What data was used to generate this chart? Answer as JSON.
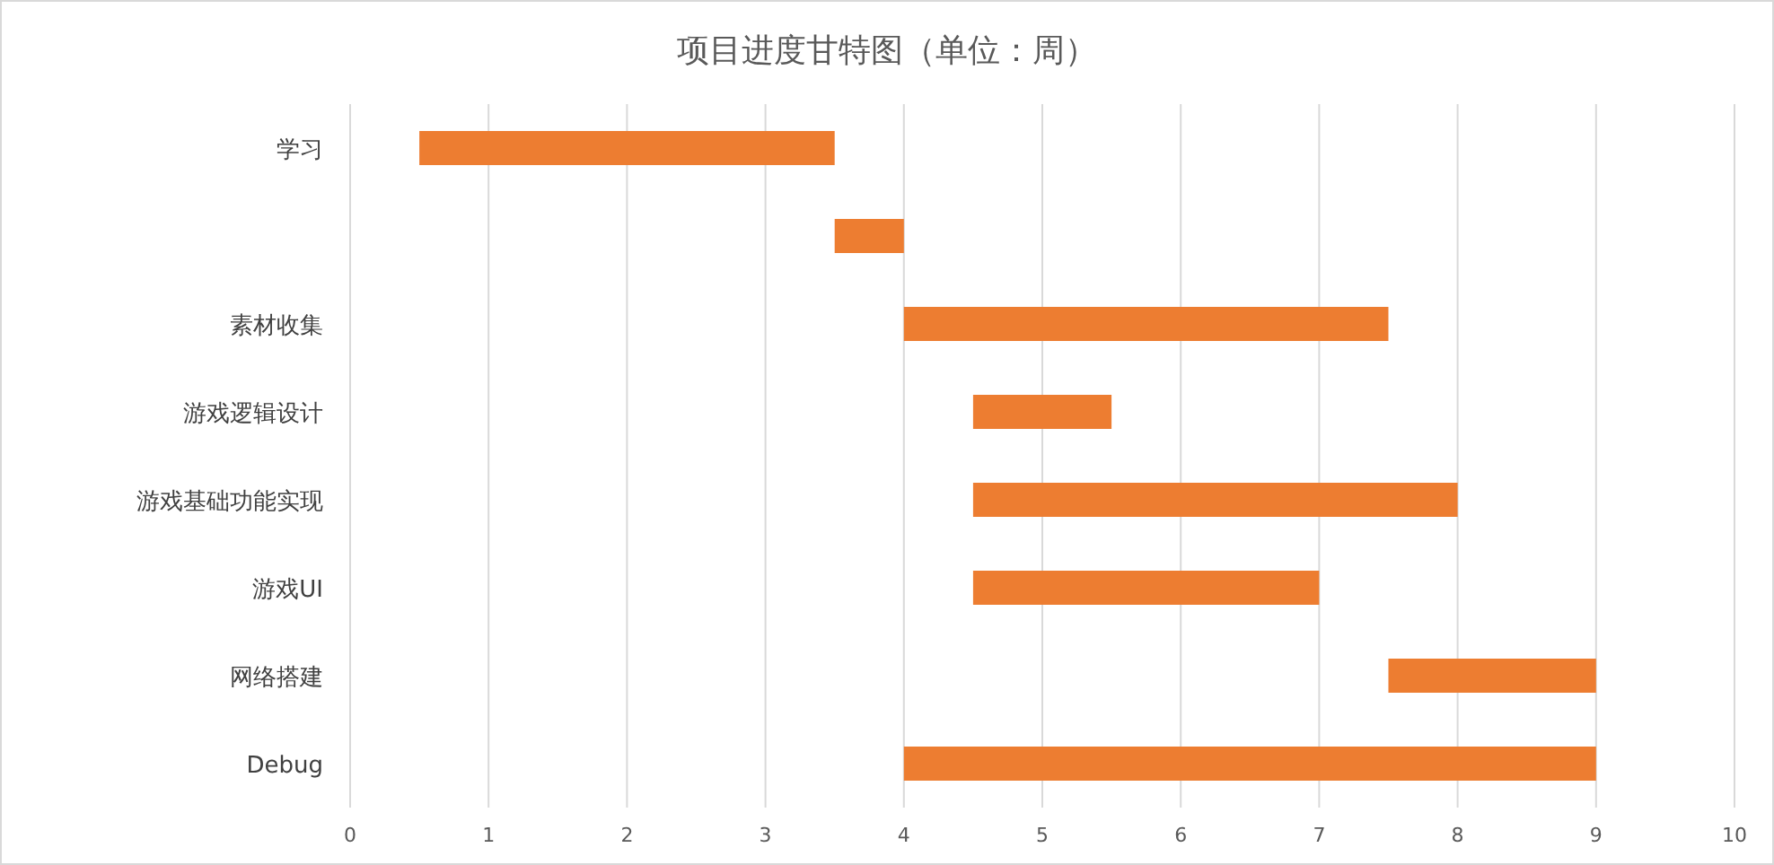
{
  "chart_data": {
    "type": "bar",
    "orientation": "horizontal",
    "title": "项目进度甘特图（单位：周）",
    "categories": [
      "学习",
      null,
      "素材收集",
      "游戏逻辑设计",
      "游戏基础功能实现",
      "游戏UI",
      "网络搭建",
      "Debug"
    ],
    "base": [
      0.5,
      3.5,
      4,
      4.5,
      4.5,
      4.5,
      7.5,
      4
    ],
    "values": [
      3,
      0.5,
      3.5,
      1,
      3.5,
      2.5,
      1.5,
      5
    ],
    "color": "#ed7d31",
    "xlim": [
      0,
      10
    ],
    "xticks": [
      0,
      1,
      2,
      3,
      4,
      5,
      6,
      7,
      8,
      9,
      10
    ],
    "grid": "x"
  }
}
